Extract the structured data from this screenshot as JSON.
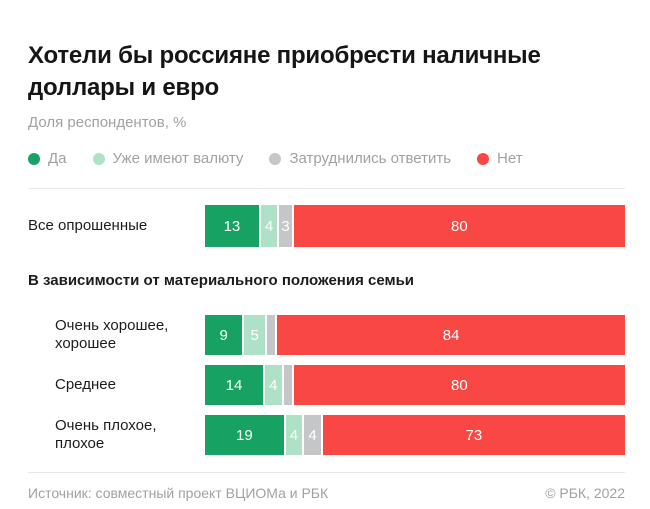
{
  "title": "Хотели бы россияне приобрести наличные доллары и евро",
  "subtitle": "Доля респондентов, %",
  "legend": {
    "items": [
      {
        "label": "Да",
        "color": "#17a263"
      },
      {
        "label": "Уже имеют валюту",
        "color": "#afe1c7"
      },
      {
        "label": "Затруднились ответить",
        "color": "#c4c6c7"
      },
      {
        "label": "Нет",
        "color": "#f94843"
      }
    ]
  },
  "chart_data": {
    "type": "bar",
    "orientation": "horizontal",
    "stacked": true,
    "unit": "%",
    "value_range": [
      0,
      100
    ],
    "grid": false,
    "legend_position": "top",
    "series_names": [
      "Да",
      "Уже имеют валюту",
      "Затруднились ответить",
      "Нет"
    ],
    "series_colors": [
      "#17a263",
      "#afe1c7",
      "#c4c6c7",
      "#f94843"
    ],
    "min_label_value": 3,
    "section_header": "В зависимости от материального положения семьи",
    "rows": [
      {
        "label": "Все опрошенные",
        "indent": false,
        "values": [
          13,
          4,
          3,
          80
        ]
      },
      {
        "label": "Очень хорошее, хорошее",
        "indent": true,
        "values": [
          9,
          5,
          2,
          84
        ]
      },
      {
        "label": "Среднее",
        "indent": true,
        "values": [
          14,
          4,
          2,
          80
        ]
      },
      {
        "label": "Очень плохое, плохое",
        "indent": true,
        "values": [
          19,
          4,
          4,
          73
        ]
      }
    ]
  },
  "footer": {
    "source": "Источник: совместный проект ВЦИОМа и РБК",
    "copyright": "© РБК, 2022"
  }
}
